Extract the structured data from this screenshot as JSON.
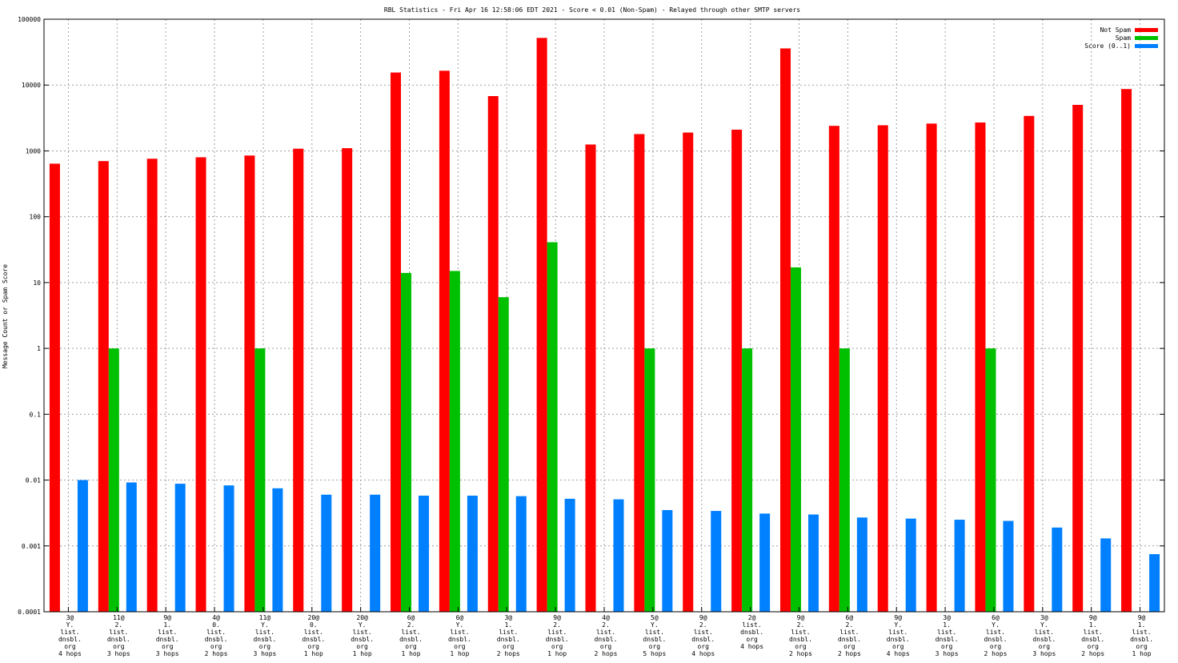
{
  "chart_data": {
    "type": "bar",
    "title": "RBL Statistics - Fri Apr 16 12:58:06 EDT 2021 - Score < 0.01 (Non-Spam) - Relayed through other SMTP servers",
    "ylabel": "Message Count or Spam Score",
    "xlabel": "",
    "yscale": "log",
    "ylim": [
      0.0001,
      100000
    ],
    "yticks": [
      "0.0001",
      "0.001",
      "0.01",
      "0.1",
      "1",
      "10",
      "100",
      "1000",
      "10000",
      "100000"
    ],
    "grid": true,
    "legend_position": "top-right",
    "categories": [
      [
        "3@",
        "Y.",
        "list.",
        "dnsbl.",
        "org",
        "4 hops"
      ],
      [
        "11@",
        "2.",
        "list.",
        "dnsbl.",
        "org",
        "3 hops"
      ],
      [
        "9@",
        "1.",
        "list.",
        "dnsbl.",
        "org",
        "3 hops"
      ],
      [
        "4@",
        "0.",
        "list.",
        "dnsbl.",
        "org",
        "2 hops"
      ],
      [
        "11@",
        "Y.",
        "list.",
        "dnsbl.",
        "org",
        "3 hops"
      ],
      [
        "20@",
        "0.",
        "list.",
        "dnsbl.",
        "org",
        "1 hop"
      ],
      [
        "20@",
        "Y.",
        "list.",
        "dnsbl.",
        "org",
        "1 hop"
      ],
      [
        "6@",
        "2.",
        "list.",
        "dnsbl.",
        "org",
        "1 hop"
      ],
      [
        "6@",
        "Y.",
        "list.",
        "dnsbl.",
        "org",
        "1 hop"
      ],
      [
        "3@",
        "1.",
        "list.",
        "dnsbl.",
        "org",
        "2 hops"
      ],
      [
        "9@",
        "2.",
        "list.",
        "dnsbl.",
        "org",
        "1 hop"
      ],
      [
        "4@",
        "2.",
        "list.",
        "dnsbl.",
        "org",
        "2 hops"
      ],
      [
        "5@",
        "Y.",
        "list.",
        "dnsbl.",
        "org",
        "5 hops"
      ],
      [
        "9@",
        "2.",
        "list.",
        "dnsbl.",
        "org",
        "4 hops"
      ],
      [
        "2@",
        "list.",
        "dnsbl.",
        "org",
        "4 hops"
      ],
      [
        "9@",
        "2.",
        "list.",
        "dnsbl.",
        "org",
        "2 hops"
      ],
      [
        "6@",
        "2.",
        "list.",
        "dnsbl.",
        "org",
        "2 hops"
      ],
      [
        "9@",
        "Y.",
        "list.",
        "dnsbl.",
        "org",
        "4 hops"
      ],
      [
        "3@",
        "1.",
        "list.",
        "dnsbl.",
        "org",
        "3 hops"
      ],
      [
        "6@",
        "Y.",
        "list.",
        "dnsbl.",
        "org",
        "2 hops"
      ],
      [
        "3@",
        "Y.",
        "list.",
        "dnsbl.",
        "org",
        "3 hops"
      ],
      [
        "9@",
        "1.",
        "list.",
        "dnsbl.",
        "org",
        "2 hops"
      ],
      [
        "9@",
        "1.",
        "list.",
        "dnsbl.",
        "org",
        "1 hop"
      ]
    ],
    "series": [
      {
        "name": "Not Spam",
        "color": "#ff0000",
        "values": [
          640,
          700,
          760,
          800,
          850,
          1080,
          1100,
          15500,
          16500,
          6800,
          52000,
          1250,
          1800,
          1900,
          2100,
          36000,
          2400,
          2450,
          2600,
          2700,
          3400,
          5000,
          8700
        ]
      },
      {
        "name": "Spam",
        "color": "#00c000",
        "values": [
          null,
          1,
          null,
          null,
          1,
          null,
          null,
          14,
          15,
          6,
          41,
          null,
          1,
          null,
          1,
          17,
          1,
          null,
          null,
          1,
          null,
          null,
          null
        ]
      },
      {
        "name": "Score (0..1)",
        "color": "#0080ff",
        "values": [
          0.01,
          0.0092,
          0.0088,
          0.0083,
          0.0075,
          0.006,
          0.006,
          0.0058,
          0.0058,
          0.0057,
          0.0052,
          0.0051,
          0.0035,
          0.0034,
          0.0031,
          0.003,
          0.0027,
          0.0026,
          0.0025,
          0.0024,
          0.0019,
          0.0013,
          0.00075
        ]
      }
    ]
  }
}
